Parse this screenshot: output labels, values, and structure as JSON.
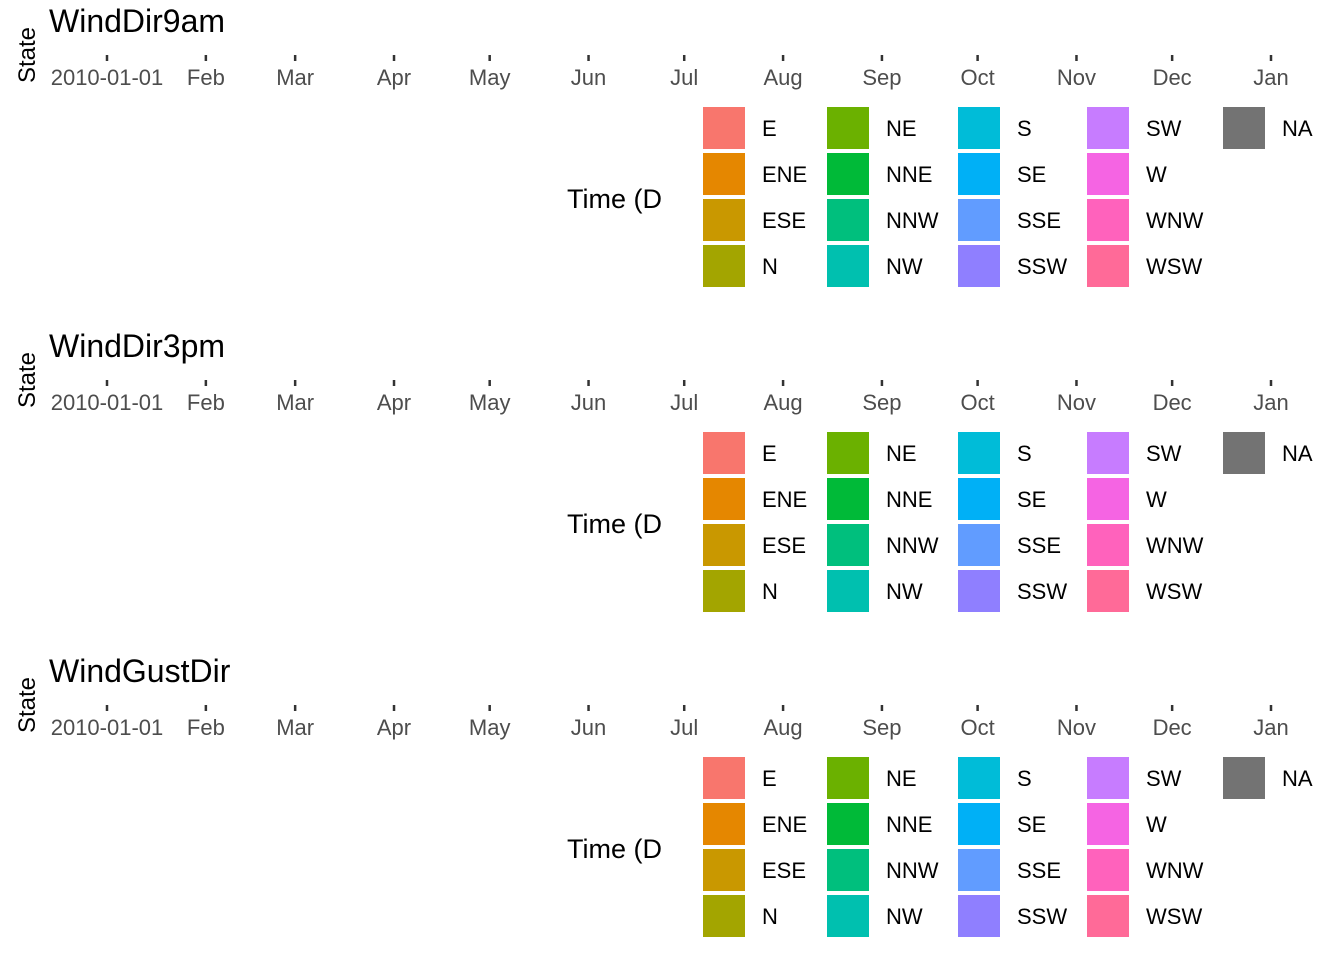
{
  "chart_data": [
    {
      "type": "heatmap",
      "title": "WindDir9am",
      "ylabel": "State",
      "xlabel": "Time (D",
      "x_ticks": [
        "2010-01-01",
        "Feb",
        "Mar",
        "Apr",
        "May",
        "Jun",
        "Jul",
        "Aug",
        "Sep",
        "Oct",
        "Nov",
        "Dec",
        "Jan"
      ],
      "x_tick_dates": [
        "2010-01-01",
        "2010-02-01",
        "2010-03-01",
        "2010-04-01",
        "2010-05-01",
        "2010-06-01",
        "2010-07-01",
        "2010-08-01",
        "2010-09-01",
        "2010-10-01",
        "2010-11-01",
        "2010-12-01",
        "2011-01-01"
      ],
      "legend_entries": [
        "E",
        "ENE",
        "ESE",
        "N",
        "NE",
        "NNE",
        "NNW",
        "NW",
        "S",
        "SE",
        "SSE",
        "SSW",
        "SW",
        "W",
        "WNW",
        "WSW",
        "NA"
      ]
    },
    {
      "type": "heatmap",
      "title": "WindDir3pm",
      "ylabel": "State",
      "xlabel": "Time (D",
      "x_ticks": [
        "2010-01-01",
        "Feb",
        "Mar",
        "Apr",
        "May",
        "Jun",
        "Jul",
        "Aug",
        "Sep",
        "Oct",
        "Nov",
        "Dec",
        "Jan"
      ],
      "x_tick_dates": [
        "2010-01-01",
        "2010-02-01",
        "2010-03-01",
        "2010-04-01",
        "2010-05-01",
        "2010-06-01",
        "2010-07-01",
        "2010-08-01",
        "2010-09-01",
        "2010-10-01",
        "2010-11-01",
        "2010-12-01",
        "2011-01-01"
      ],
      "legend_entries": [
        "E",
        "ENE",
        "ESE",
        "N",
        "NE",
        "NNE",
        "NNW",
        "NW",
        "S",
        "SE",
        "SSE",
        "SSW",
        "SW",
        "W",
        "WNW",
        "WSW",
        "NA"
      ]
    },
    {
      "type": "heatmap",
      "title": "WindGustDir",
      "ylabel": "State",
      "xlabel": "Time (D",
      "x_ticks": [
        "2010-01-01",
        "Feb",
        "Mar",
        "Apr",
        "May",
        "Jun",
        "Jul",
        "Aug",
        "Sep",
        "Oct",
        "Nov",
        "Dec",
        "Jan"
      ],
      "x_tick_dates": [
        "2010-01-01",
        "2010-02-01",
        "2010-03-01",
        "2010-04-01",
        "2010-05-01",
        "2010-06-01",
        "2010-07-01",
        "2010-08-01",
        "2010-09-01",
        "2010-10-01",
        "2010-11-01",
        "2010-12-01",
        "2011-01-01"
      ],
      "legend_entries": [
        "E",
        "ENE",
        "ESE",
        "N",
        "NE",
        "NNE",
        "NNW",
        "NW",
        "S",
        "SE",
        "SSE",
        "SSW",
        "SW",
        "W",
        "WNW",
        "WSW",
        "NA"
      ]
    }
  ],
  "legend_colors": {
    "E": "#F8766D",
    "ENE": "#E58700",
    "ESE": "#C99800",
    "N": "#A3A500",
    "NE": "#6BB100",
    "NNE": "#00BA38",
    "NNW": "#00BF7D",
    "NW": "#00C0AF",
    "S": "#00BCD8",
    "SE": "#00B0F6",
    "SSE": "#619CFF",
    "SSW": "#8F7FFF",
    "SW": "#C77CFF",
    "W": "#F564E3",
    "WNW": "#FF62BC",
    "WSW": "#FF6A98",
    "NA": "#737373"
  }
}
